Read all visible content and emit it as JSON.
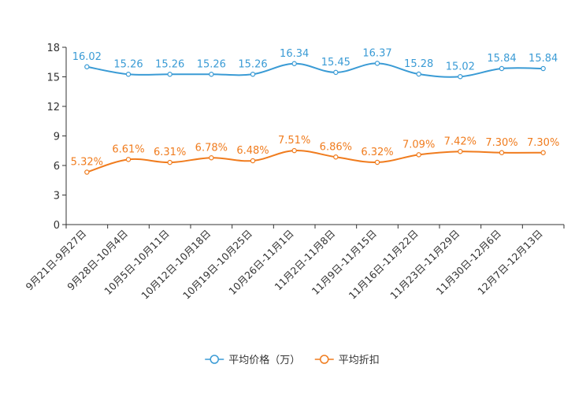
{
  "chart_data": {
    "type": "line",
    "title": "",
    "xlabel": "",
    "ylabel": "",
    "ylim": [
      0,
      18
    ],
    "yticks": [
      0,
      3,
      6,
      9,
      12,
      15,
      18
    ],
    "categories": [
      "9月21日-9月27日",
      "9月28日-10月4日",
      "10月5日-10月11日",
      "10月12日-10月18日",
      "10月19日-10月25日",
      "10月26日-11月1日",
      "11月2日-11月8日",
      "11月9日-11月15日",
      "11月16日-11月22日",
      "11月23日-11月29日",
      "11月30日-12月6日",
      "12月7日-12月13日"
    ],
    "series": [
      {
        "name": "平均价格（万）",
        "color": "#3a9bd5",
        "values": [
          16.02,
          15.26,
          15.26,
          15.26,
          15.26,
          16.34,
          15.45,
          16.37,
          15.28,
          15.02,
          15.84,
          15.84
        ],
        "labels": [
          "16.02",
          "15.26",
          "15.26",
          "15.26",
          "15.26",
          "16.34",
          "15.45",
          "16.37",
          "15.28",
          "15.02",
          "15.84",
          "15.84"
        ]
      },
      {
        "name": "平均折扣",
        "color": "#f07c1e",
        "values": [
          5.32,
          6.61,
          6.31,
          6.78,
          6.48,
          7.51,
          6.86,
          6.32,
          7.09,
          7.42,
          7.3,
          7.3
        ],
        "labels": [
          "5.32%",
          "6.61%",
          "6.31%",
          "6.78%",
          "6.48%",
          "7.51%",
          "6.86%",
          "6.32%",
          "7.09%",
          "7.42%",
          "7.30%",
          "7.30%"
        ]
      }
    ],
    "legend": "bottom-center"
  }
}
